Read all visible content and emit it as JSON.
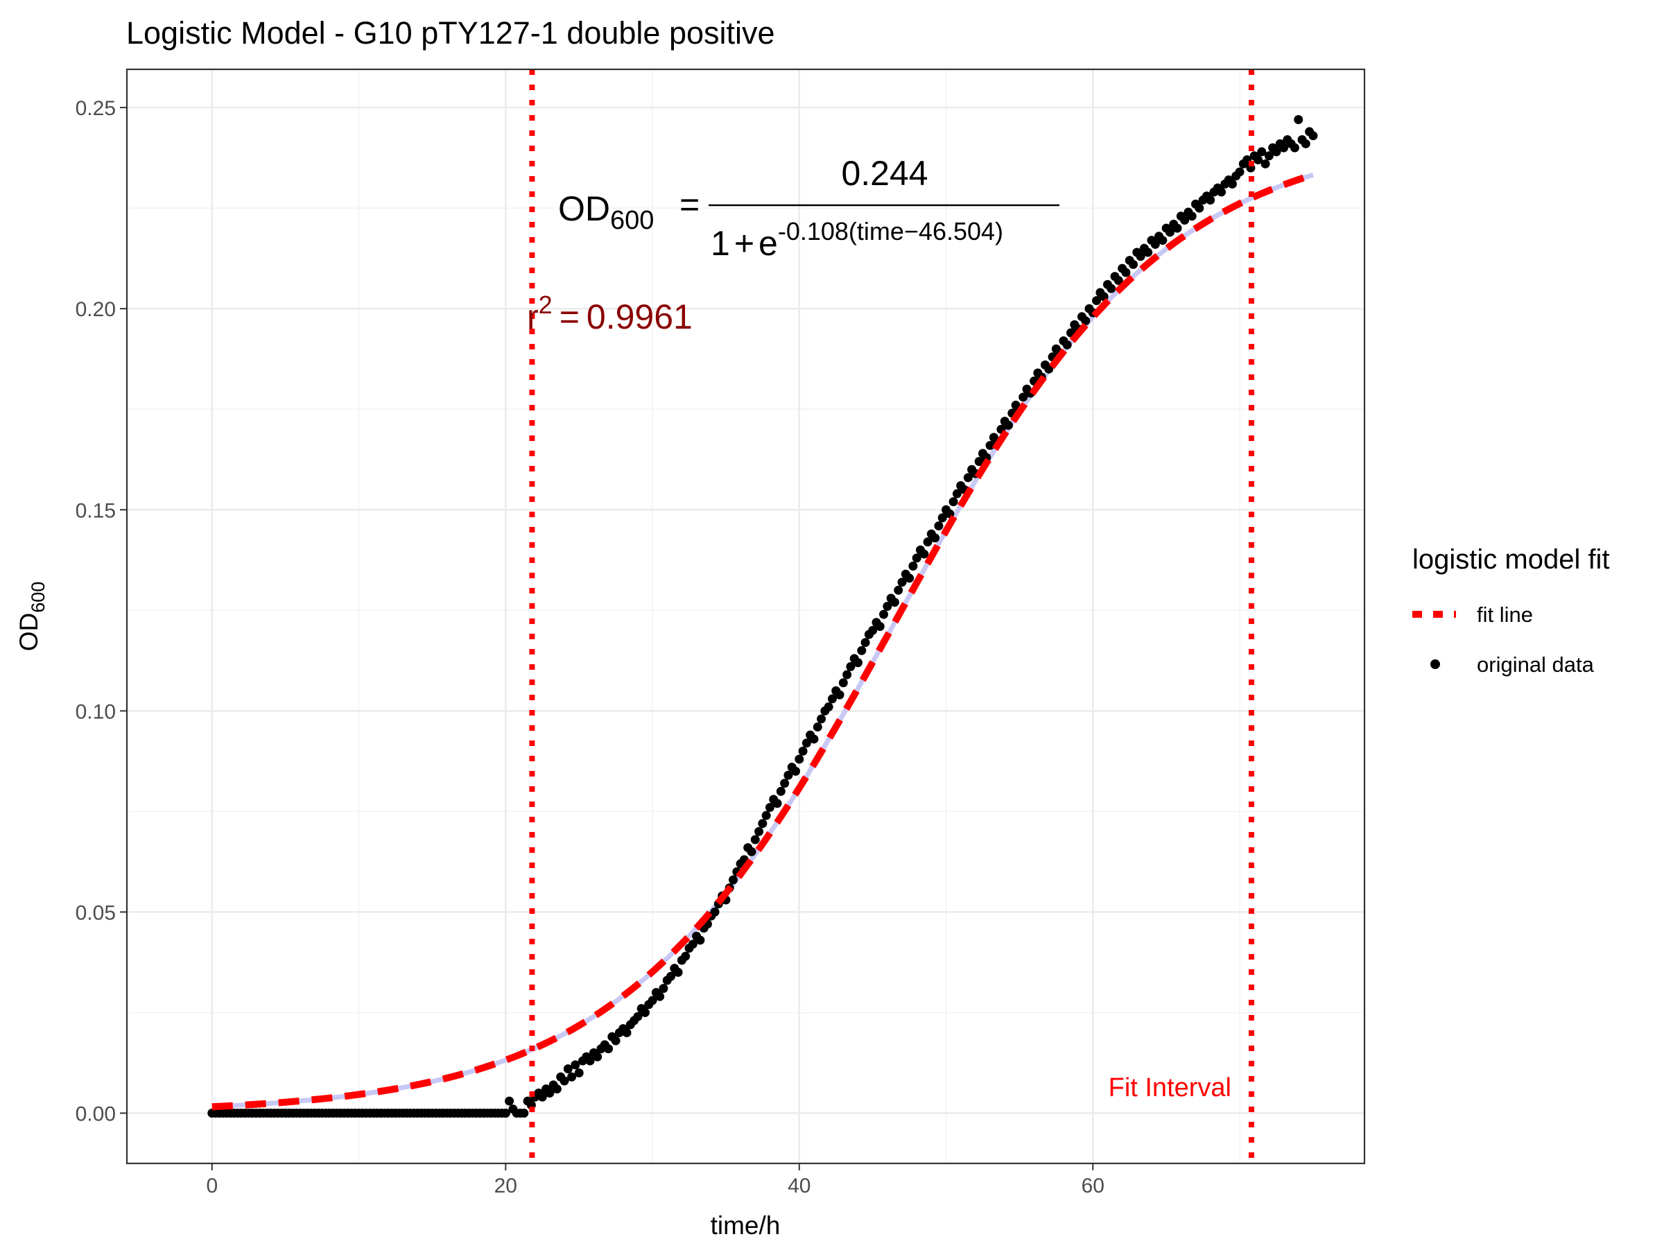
{
  "chart_data": {
    "type": "scatter",
    "title": "Logistic Model -  G10 pTY127-1 double positive",
    "xlabel": "time/h",
    "ylabel": {
      "base": "OD",
      "sub": "600"
    },
    "xlim": [
      -5.8,
      78.5
    ],
    "ylim": [
      -0.0125,
      0.2595
    ],
    "x_ticks": [
      0,
      20,
      40,
      60
    ],
    "x_tick_labels": [
      "0",
      "20",
      "40",
      "60"
    ],
    "y_ticks": [
      0,
      0.05,
      0.1,
      0.15,
      0.2,
      0.25
    ],
    "y_tick_labels": [
      "0.00",
      "0.05",
      "0.10",
      "0.15",
      "0.20",
      "0.25"
    ],
    "grid": true,
    "legend": {
      "title": "logistic model fit",
      "position": "right",
      "entries": [
        {
          "label": "fit line",
          "kind": "dashed-line",
          "color": "#ff0000"
        },
        {
          "label": "original data",
          "kind": "point",
          "color": "#000000"
        }
      ]
    },
    "model": {
      "K": 0.244,
      "r": 0.108,
      "t0": 46.504
    },
    "equation": {
      "lhs_base": "OD",
      "lhs_sub": "600",
      "equals": "=",
      "numerator": "0.244",
      "denominator_prefix": "1",
      "plus": "+",
      "e": "e",
      "exponent": "-0.108(time−46.504)"
    },
    "r_squared": {
      "base": "r",
      "sup": "2",
      "equals": "=",
      "value": "0.9961"
    },
    "fit_interval": {
      "label": "Fit Interval",
      "start": 21.8,
      "end": 70.8
    },
    "colors": {
      "fit_line": "#ff0000",
      "smooth_line": "#c8c8f5",
      "points": "#000000",
      "interval": "#ff0000",
      "r2_text": "#8b0000"
    },
    "original_data": {
      "x_start": 0,
      "x_end": 75,
      "step": 0.25,
      "zero_until": 20,
      "points": [
        [
          20.0,
          0.0
        ],
        [
          20.25,
          0.003
        ],
        [
          20.5,
          0.001
        ],
        [
          20.75,
          0.0
        ],
        [
          21.0,
          0.0
        ],
        [
          21.25,
          0.0
        ],
        [
          21.5,
          0.003
        ],
        [
          21.75,
          0.002
        ],
        [
          22.0,
          0.004
        ],
        [
          22.25,
          0.005
        ],
        [
          22.5,
          0.004
        ],
        [
          22.75,
          0.006
        ],
        [
          23.0,
          0.005
        ],
        [
          23.25,
          0.007
        ],
        [
          23.5,
          0.006
        ],
        [
          23.75,
          0.009
        ],
        [
          24.0,
          0.008
        ],
        [
          24.25,
          0.011
        ],
        [
          24.5,
          0.009
        ],
        [
          24.75,
          0.012
        ],
        [
          25.0,
          0.01
        ],
        [
          25.25,
          0.013
        ],
        [
          25.5,
          0.014
        ],
        [
          25.75,
          0.013
        ],
        [
          26.0,
          0.015
        ],
        [
          26.25,
          0.014
        ],
        [
          26.5,
          0.016
        ],
        [
          26.75,
          0.017
        ],
        [
          27.0,
          0.016
        ],
        [
          27.25,
          0.019
        ],
        [
          27.5,
          0.018
        ],
        [
          27.75,
          0.02
        ],
        [
          28.0,
          0.021
        ],
        [
          28.25,
          0.02
        ],
        [
          28.5,
          0.022
        ],
        [
          28.75,
          0.023
        ],
        [
          29.0,
          0.024
        ],
        [
          29.25,
          0.026
        ],
        [
          29.5,
          0.025
        ],
        [
          29.75,
          0.027
        ],
        [
          30.0,
          0.028
        ],
        [
          30.25,
          0.03
        ],
        [
          30.5,
          0.029
        ],
        [
          30.75,
          0.031
        ],
        [
          31.0,
          0.033
        ],
        [
          31.25,
          0.034
        ],
        [
          31.5,
          0.036
        ],
        [
          31.75,
          0.035
        ],
        [
          32.0,
          0.038
        ],
        [
          32.25,
          0.039
        ],
        [
          32.5,
          0.041
        ],
        [
          32.75,
          0.042
        ],
        [
          33.0,
          0.044
        ],
        [
          33.25,
          0.043
        ],
        [
          33.5,
          0.046
        ],
        [
          33.75,
          0.047
        ],
        [
          34.0,
          0.049
        ],
        [
          34.25,
          0.05
        ],
        [
          34.5,
          0.052
        ],
        [
          34.75,
          0.054
        ],
        [
          35.0,
          0.053
        ],
        [
          35.25,
          0.056
        ],
        [
          35.5,
          0.058
        ],
        [
          35.75,
          0.06
        ],
        [
          36.0,
          0.062
        ],
        [
          36.25,
          0.063
        ],
        [
          36.5,
          0.066
        ],
        [
          36.75,
          0.065
        ],
        [
          37.0,
          0.068
        ],
        [
          37.25,
          0.07
        ],
        [
          37.5,
          0.072
        ],
        [
          37.75,
          0.074
        ],
        [
          38.0,
          0.076
        ],
        [
          38.25,
          0.078
        ],
        [
          38.5,
          0.077
        ],
        [
          38.75,
          0.08
        ],
        [
          39.0,
          0.082
        ],
        [
          39.25,
          0.084
        ],
        [
          39.5,
          0.086
        ],
        [
          39.75,
          0.085
        ],
        [
          40.0,
          0.088
        ],
        [
          40.25,
          0.09
        ],
        [
          40.5,
          0.092
        ],
        [
          40.75,
          0.094
        ],
        [
          41.0,
          0.093
        ],
        [
          41.25,
          0.096
        ],
        [
          41.5,
          0.098
        ],
        [
          41.75,
          0.1
        ],
        [
          42.0,
          0.101
        ],
        [
          42.25,
          0.103
        ],
        [
          42.5,
          0.105
        ],
        [
          42.75,
          0.104
        ],
        [
          43.0,
          0.107
        ],
        [
          43.25,
          0.109
        ],
        [
          43.5,
          0.111
        ],
        [
          43.75,
          0.113
        ],
        [
          44.0,
          0.112
        ],
        [
          44.25,
          0.115
        ],
        [
          44.5,
          0.117
        ],
        [
          44.75,
          0.119
        ],
        [
          45.0,
          0.12
        ],
        [
          45.25,
          0.122
        ],
        [
          45.5,
          0.121
        ],
        [
          45.75,
          0.124
        ],
        [
          46.0,
          0.126
        ],
        [
          46.25,
          0.128
        ],
        [
          46.5,
          0.127
        ],
        [
          46.75,
          0.13
        ],
        [
          47.0,
          0.132
        ],
        [
          47.25,
          0.134
        ],
        [
          47.5,
          0.133
        ],
        [
          47.75,
          0.136
        ],
        [
          48.0,
          0.138
        ],
        [
          48.25,
          0.14
        ],
        [
          48.5,
          0.139
        ],
        [
          48.75,
          0.142
        ],
        [
          49.0,
          0.144
        ],
        [
          49.25,
          0.143
        ],
        [
          49.5,
          0.146
        ],
        [
          49.75,
          0.148
        ],
        [
          50.0,
          0.15
        ],
        [
          50.25,
          0.149
        ],
        [
          50.5,
          0.152
        ],
        [
          50.75,
          0.154
        ],
        [
          51.0,
          0.156
        ],
        [
          51.25,
          0.155
        ],
        [
          51.5,
          0.158
        ],
        [
          51.75,
          0.16
        ],
        [
          52.0,
          0.159
        ],
        [
          52.25,
          0.162
        ],
        [
          52.5,
          0.164
        ],
        [
          52.75,
          0.163
        ],
        [
          53.0,
          0.166
        ],
        [
          53.25,
          0.168
        ],
        [
          53.5,
          0.167
        ],
        [
          53.75,
          0.17
        ],
        [
          54.0,
          0.172
        ],
        [
          54.25,
          0.171
        ],
        [
          54.5,
          0.174
        ],
        [
          54.75,
          0.176
        ],
        [
          55.0,
          0.175
        ],
        [
          55.25,
          0.178
        ],
        [
          55.5,
          0.18
        ],
        [
          55.75,
          0.179
        ],
        [
          56.0,
          0.182
        ],
        [
          56.25,
          0.184
        ],
        [
          56.5,
          0.183
        ],
        [
          56.75,
          0.186
        ],
        [
          57.0,
          0.185
        ],
        [
          57.25,
          0.188
        ],
        [
          57.5,
          0.19
        ],
        [
          57.75,
          0.189
        ],
        [
          58.0,
          0.192
        ],
        [
          58.25,
          0.191
        ],
        [
          58.5,
          0.194
        ],
        [
          58.75,
          0.196
        ],
        [
          59.0,
          0.195
        ],
        [
          59.25,
          0.198
        ],
        [
          59.5,
          0.197
        ],
        [
          59.75,
          0.2
        ],
        [
          60.0,
          0.199
        ],
        [
          60.25,
          0.202
        ],
        [
          60.5,
          0.204
        ],
        [
          60.75,
          0.203
        ],
        [
          61.0,
          0.206
        ],
        [
          61.25,
          0.205
        ],
        [
          61.5,
          0.208
        ],
        [
          61.75,
          0.207
        ],
        [
          62.0,
          0.21
        ],
        [
          62.25,
          0.209
        ],
        [
          62.5,
          0.212
        ],
        [
          62.75,
          0.211
        ],
        [
          63.0,
          0.214
        ],
        [
          63.25,
          0.213
        ],
        [
          63.5,
          0.215
        ],
        [
          63.75,
          0.214
        ],
        [
          64.0,
          0.217
        ],
        [
          64.25,
          0.216
        ],
        [
          64.5,
          0.218
        ],
        [
          64.75,
          0.217
        ],
        [
          65.0,
          0.22
        ],
        [
          65.25,
          0.219
        ],
        [
          65.5,
          0.221
        ],
        [
          65.75,
          0.22
        ],
        [
          66.0,
          0.223
        ],
        [
          66.25,
          0.222
        ],
        [
          66.5,
          0.224
        ],
        [
          66.75,
          0.223
        ],
        [
          67.0,
          0.226
        ],
        [
          67.25,
          0.225
        ],
        [
          67.5,
          0.227
        ],
        [
          67.75,
          0.228
        ],
        [
          68.0,
          0.227
        ],
        [
          68.25,
          0.229
        ],
        [
          68.5,
          0.23
        ],
        [
          68.75,
          0.229
        ],
        [
          69.0,
          0.231
        ],
        [
          69.25,
          0.232
        ],
        [
          69.5,
          0.231
        ],
        [
          69.75,
          0.233
        ],
        [
          70.0,
          0.234
        ],
        [
          70.25,
          0.236
        ],
        [
          70.5,
          0.237
        ],
        [
          70.75,
          0.235
        ],
        [
          71.0,
          0.238
        ],
        [
          71.25,
          0.237
        ],
        [
          71.5,
          0.239
        ],
        [
          71.75,
          0.236
        ],
        [
          72.0,
          0.238
        ],
        [
          72.25,
          0.24
        ],
        [
          72.5,
          0.239
        ],
        [
          72.75,
          0.241
        ],
        [
          73.0,
          0.24
        ],
        [
          73.25,
          0.242
        ],
        [
          73.5,
          0.241
        ],
        [
          73.75,
          0.24
        ],
        [
          74.0,
          0.247
        ],
        [
          74.25,
          0.242
        ],
        [
          74.5,
          0.241
        ],
        [
          74.75,
          0.244
        ],
        [
          75.0,
          0.243
        ]
      ]
    }
  }
}
